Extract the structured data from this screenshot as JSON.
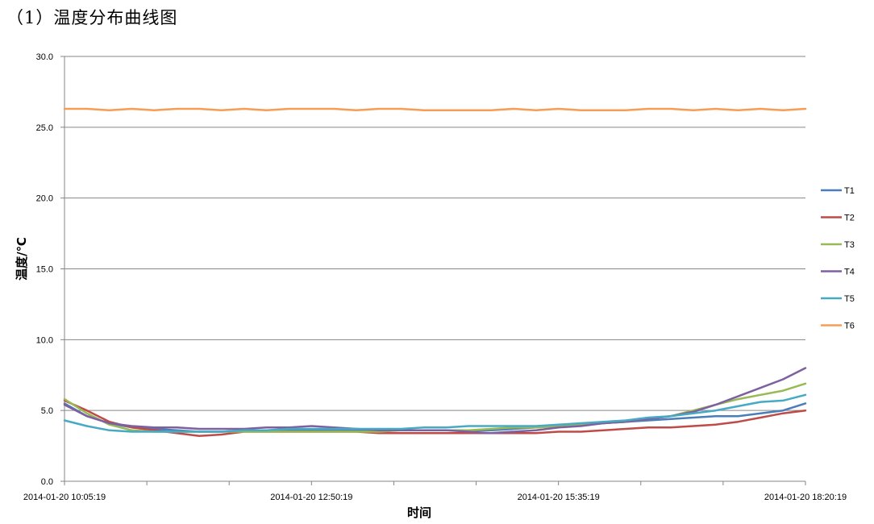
{
  "page": {
    "heading": "（1）温度分布曲线图"
  },
  "chart_data": {
    "type": "line",
    "title": "",
    "xlabel": "时间",
    "ylabel": "温度/℃",
    "ylim": [
      0,
      30
    ],
    "yticks": [
      "0.0",
      "5.0",
      "10.0",
      "15.0",
      "20.0",
      "25.0",
      "30.0"
    ],
    "xlim": [
      "2014-01-20 10:05:19",
      "2014-01-20 18:20:19"
    ],
    "xticks": [
      "2014-01-20 10:05:19",
      "2014-01-20 12:50:19",
      "2014-01-20 15:35:19",
      "2014-01-20 18:20:19"
    ],
    "grid": "horizontal",
    "legend": "right",
    "x": [
      "2014-01-20 10:05:19",
      "2014-01-20 10:20:19",
      "2014-01-20 10:35:19",
      "2014-01-20 10:50:19",
      "2014-01-20 11:05:19",
      "2014-01-20 11:20:19",
      "2014-01-20 11:35:19",
      "2014-01-20 11:50:19",
      "2014-01-20 12:05:19",
      "2014-01-20 12:20:19",
      "2014-01-20 12:35:19",
      "2014-01-20 12:50:19",
      "2014-01-20 13:05:19",
      "2014-01-20 13:20:19",
      "2014-01-20 13:35:19",
      "2014-01-20 13:50:19",
      "2014-01-20 14:05:19",
      "2014-01-20 14:20:19",
      "2014-01-20 14:35:19",
      "2014-01-20 14:50:19",
      "2014-01-20 15:05:19",
      "2014-01-20 15:20:19",
      "2014-01-20 15:35:19",
      "2014-01-20 15:50:19",
      "2014-01-20 16:05:19",
      "2014-01-20 16:20:19",
      "2014-01-20 16:35:19",
      "2014-01-20 16:50:19",
      "2014-01-20 17:05:19",
      "2014-01-20 17:20:19",
      "2014-01-20 17:35:19",
      "2014-01-20 17:50:19",
      "2014-01-20 18:05:19",
      "2014-01-20 18:20:19"
    ],
    "series": [
      {
        "name": "T1",
        "color": "#4A7EBB",
        "values": [
          5.5,
          4.6,
          4.1,
          3.8,
          3.7,
          3.6,
          3.5,
          3.5,
          3.6,
          3.6,
          3.6,
          3.6,
          3.6,
          3.6,
          3.6,
          3.6,
          3.6,
          3.6,
          3.6,
          3.6,
          3.7,
          3.8,
          3.9,
          4.0,
          4.1,
          4.2,
          4.3,
          4.4,
          4.5,
          4.6,
          4.6,
          4.8,
          5.0,
          5.5
        ]
      },
      {
        "name": "T2",
        "color": "#BE4B48",
        "values": [
          5.7,
          5.0,
          4.2,
          3.8,
          3.6,
          3.4,
          3.2,
          3.3,
          3.5,
          3.5,
          3.5,
          3.5,
          3.5,
          3.5,
          3.4,
          3.4,
          3.4,
          3.4,
          3.4,
          3.4,
          3.4,
          3.4,
          3.5,
          3.5,
          3.6,
          3.7,
          3.8,
          3.8,
          3.9,
          4.0,
          4.2,
          4.5,
          4.8,
          5.0
        ]
      },
      {
        "name": "T3",
        "color": "#98B954",
        "values": [
          5.8,
          4.8,
          4.0,
          3.6,
          3.5,
          3.5,
          3.5,
          3.5,
          3.5,
          3.5,
          3.5,
          3.5,
          3.5,
          3.5,
          3.5,
          3.6,
          3.6,
          3.6,
          3.6,
          3.7,
          3.8,
          3.8,
          3.9,
          4.0,
          4.1,
          4.2,
          4.4,
          4.6,
          5.0,
          5.4,
          5.8,
          6.1,
          6.4,
          6.9
        ]
      },
      {
        "name": "T4",
        "color": "#7D60A0",
        "values": [
          5.4,
          4.6,
          4.1,
          3.9,
          3.8,
          3.8,
          3.7,
          3.7,
          3.7,
          3.8,
          3.8,
          3.9,
          3.8,
          3.7,
          3.6,
          3.6,
          3.6,
          3.6,
          3.5,
          3.4,
          3.5,
          3.6,
          3.8,
          3.9,
          4.1,
          4.2,
          4.4,
          4.6,
          4.9,
          5.4,
          6.0,
          6.6,
          7.2,
          8.0
        ]
      },
      {
        "name": "T5",
        "color": "#46AAC5",
        "values": [
          4.3,
          3.9,
          3.6,
          3.5,
          3.5,
          3.5,
          3.5,
          3.5,
          3.6,
          3.6,
          3.7,
          3.7,
          3.7,
          3.7,
          3.7,
          3.7,
          3.8,
          3.8,
          3.9,
          3.9,
          3.9,
          3.9,
          4.0,
          4.1,
          4.2,
          4.3,
          4.5,
          4.6,
          4.8,
          5.0,
          5.3,
          5.6,
          5.7,
          6.1
        ]
      },
      {
        "name": "T6",
        "color": "#F59D56",
        "values": [
          26.3,
          26.3,
          26.2,
          26.3,
          26.2,
          26.3,
          26.3,
          26.2,
          26.3,
          26.2,
          26.3,
          26.3,
          26.3,
          26.2,
          26.3,
          26.3,
          26.2,
          26.2,
          26.2,
          26.2,
          26.3,
          26.2,
          26.3,
          26.2,
          26.2,
          26.2,
          26.3,
          26.3,
          26.2,
          26.3,
          26.2,
          26.3,
          26.2,
          26.3
        ]
      }
    ]
  }
}
